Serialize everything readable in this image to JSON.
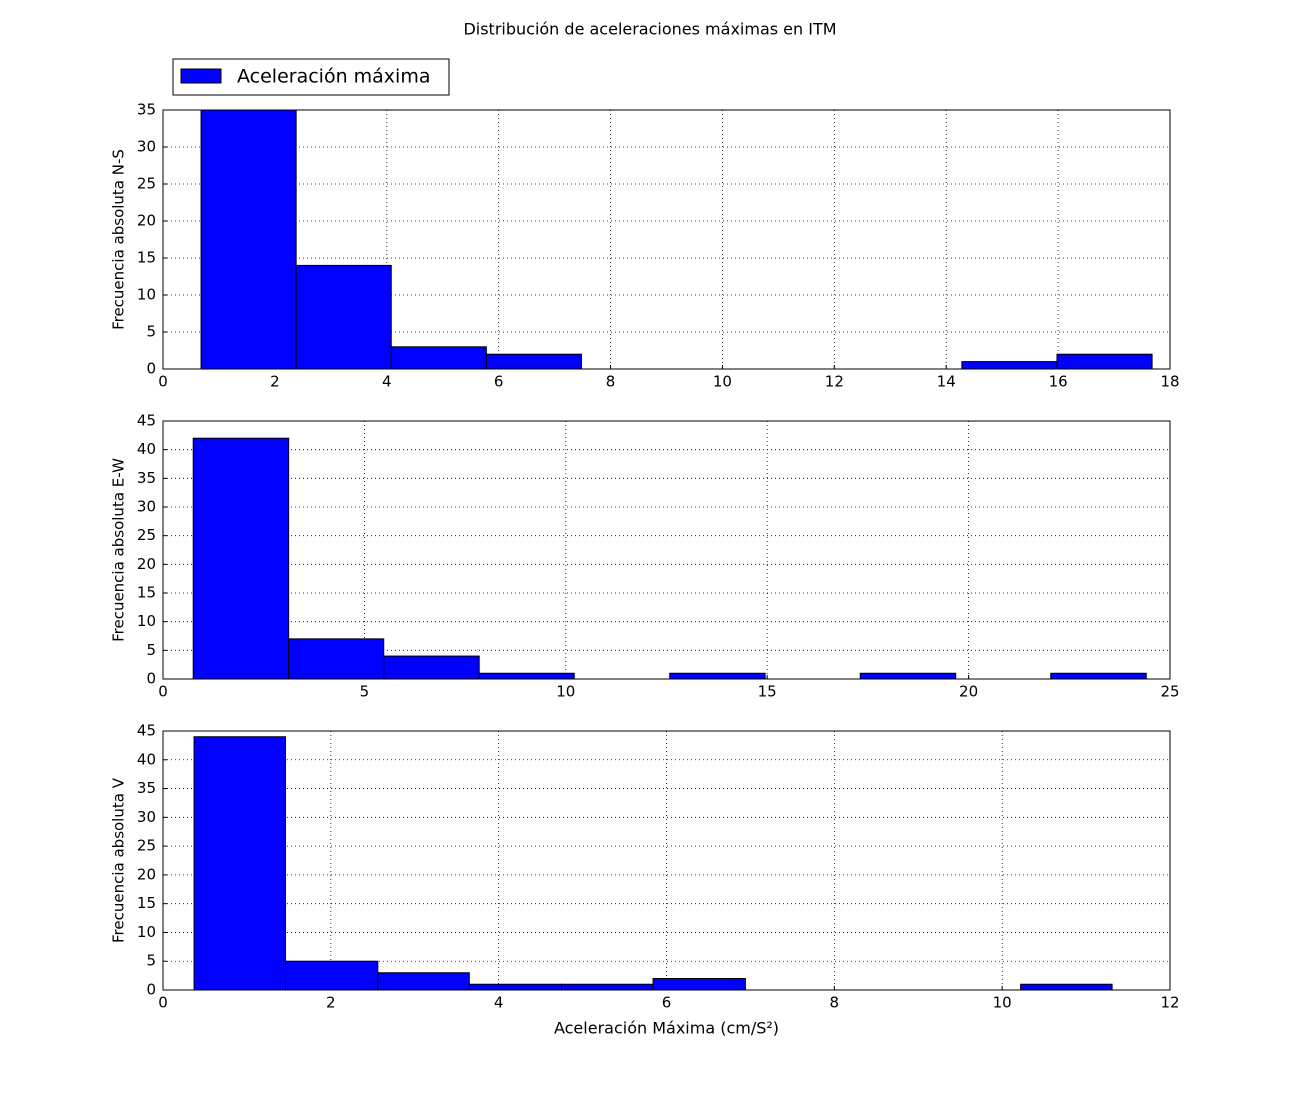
{
  "chart_data": [
    {
      "type": "histogram",
      "title": "Distribución de aceleraciones máximas en ITM",
      "ylabel": "Frecuencia absoluta N-S",
      "bins": [
        0.68,
        2.38,
        4.08,
        5.78,
        7.48,
        9.18,
        10.88,
        12.58,
        14.28,
        15.98,
        17.68
      ],
      "series": [
        {
          "name": "Aceleración máxima",
          "color": "#0000ff",
          "values": [
            35,
            14,
            3,
            2,
            0,
            0,
            0,
            0,
            1,
            2
          ]
        }
      ],
      "xlim": [
        0,
        18
      ],
      "xticks": [
        0,
        2,
        4,
        6,
        8,
        10,
        12,
        14,
        16,
        18
      ],
      "ylim": [
        0,
        35
      ],
      "yticks": [
        0,
        5,
        10,
        15,
        20,
        25,
        30,
        35
      ],
      "grid": true,
      "legend": "upper left"
    },
    {
      "type": "histogram",
      "ylabel": "Frecuencia absoluta E-W",
      "bins": [
        0.75,
        3.12,
        5.48,
        7.85,
        10.21,
        12.58,
        14.95,
        17.31,
        19.68,
        22.04,
        24.41
      ],
      "series": [
        {
          "color": "#0000ff",
          "values": [
            42,
            7,
            4,
            1,
            0,
            1,
            0,
            1,
            0,
            1
          ]
        }
      ],
      "xlim": [
        0,
        25
      ],
      "xticks": [
        0,
        5,
        10,
        15,
        20,
        25
      ],
      "ylim": [
        0,
        45
      ],
      "yticks": [
        0,
        5,
        10,
        15,
        20,
        25,
        30,
        35,
        40,
        45
      ],
      "grid": true
    },
    {
      "type": "histogram",
      "ylabel": "Frecuencia absoluta V",
      "xlabel": "Aceleración Máxima (cm/S²)",
      "bins": [
        0.37,
        1.46,
        2.56,
        3.65,
        4.75,
        5.84,
        6.94,
        8.03,
        9.13,
        10.22,
        11.31
      ],
      "series": [
        {
          "color": "#0000ff",
          "values": [
            44,
            5,
            3,
            1,
            1,
            2,
            0,
            0,
            0,
            1
          ]
        }
      ],
      "xlim": [
        0,
        12
      ],
      "xticks": [
        0,
        2,
        4,
        6,
        8,
        10,
        12
      ],
      "ylim": [
        0,
        45
      ],
      "yticks": [
        0,
        5,
        10,
        15,
        20,
        25,
        30,
        35,
        40,
        45
      ],
      "grid": true
    }
  ]
}
